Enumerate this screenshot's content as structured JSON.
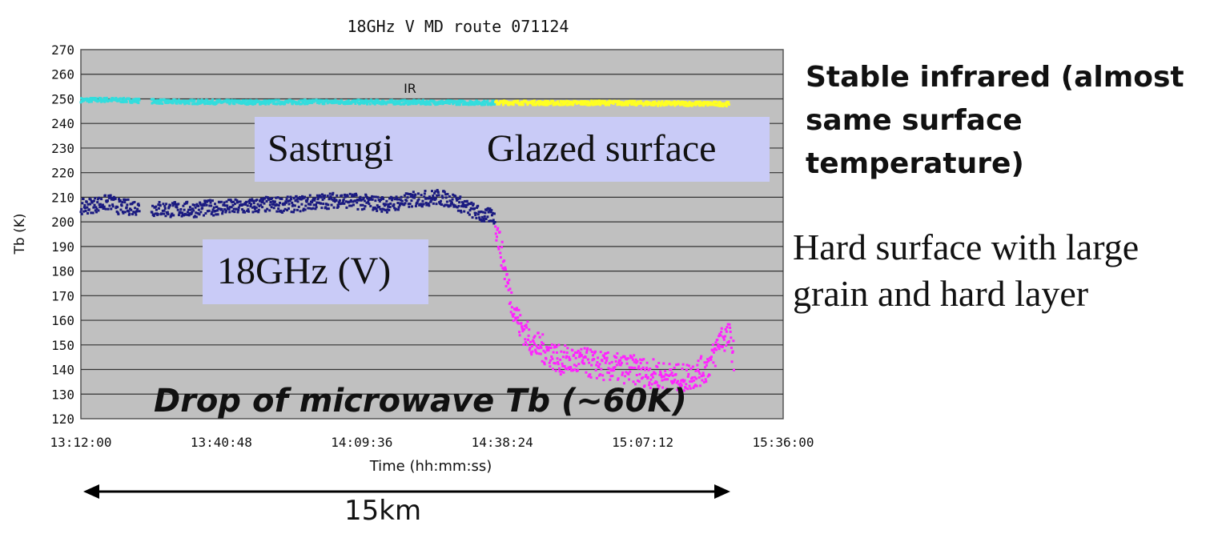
{
  "chart_data": {
    "type": "scatter",
    "title": "18GHz V MD route  071124",
    "xlabel": "Time (hh:mm:ss)",
    "ylabel": "Tb (K)",
    "ylim": [
      120,
      270
    ],
    "yticks": [
      120,
      130,
      140,
      150,
      160,
      170,
      180,
      190,
      200,
      210,
      220,
      230,
      240,
      250,
      260,
      270
    ],
    "xlim": [
      "13:12:00",
      "15:36:00"
    ],
    "xticks": [
      "13:12:00",
      "13:40:48",
      "14:09:36",
      "14:38:24",
      "15:07:12",
      "15:36:00"
    ],
    "grid": true,
    "background": "#c0c0c0",
    "series": [
      {
        "name": "IR",
        "color_sastrugi": "#33dddd",
        "color_glazed": "#ffff22",
        "points": [
          [
            "13:12:00",
            249.5
          ],
          [
            "13:18:00",
            249.6
          ],
          [
            "13:23:00",
            249.3
          ],
          [
            "13:30:00",
            248.8
          ],
          [
            "13:40:00",
            248.7
          ],
          [
            "13:50:00",
            248.6
          ],
          [
            "14:00:00",
            248.8
          ],
          [
            "14:10:00",
            248.7
          ],
          [
            "14:20:00",
            248.6
          ],
          [
            "14:30:00",
            248.5
          ],
          [
            "14:36:00",
            248.4
          ],
          [
            "14:40:00",
            248.5
          ],
          [
            "14:50:00",
            248.3
          ],
          [
            "15:00:00",
            248.4
          ],
          [
            "15:10:00",
            248.1
          ],
          [
            "15:20:00",
            248.0
          ],
          [
            "15:25:00",
            247.9
          ]
        ]
      },
      {
        "name": "18GHz (V)",
        "color_sastrugi": "#1a1a80",
        "color_glazed": "#ff22ff",
        "points": [
          [
            "13:12:00",
            206
          ],
          [
            "13:15:00",
            207
          ],
          [
            "13:18:00",
            208
          ],
          [
            "13:20:00",
            206
          ],
          [
            "13:23:00",
            206
          ],
          [
            "13:30:00",
            205
          ],
          [
            "13:35:00",
            205
          ],
          [
            "13:40:00",
            206
          ],
          [
            "13:45:00",
            206
          ],
          [
            "13:50:00",
            207
          ],
          [
            "13:55:00",
            207
          ],
          [
            "14:00:00",
            208
          ],
          [
            "14:05:00",
            209
          ],
          [
            "14:10:00",
            208
          ],
          [
            "14:15:00",
            207
          ],
          [
            "14:20:00",
            209
          ],
          [
            "14:25:00",
            210
          ],
          [
            "14:28:00",
            209
          ],
          [
            "14:32:00",
            205
          ],
          [
            "14:35:00",
            202
          ],
          [
            "14:36:30",
            203
          ],
          [
            "14:37:00",
            200
          ],
          [
            "14:38:00",
            190
          ],
          [
            "14:39:00",
            180
          ],
          [
            "14:40:00",
            170
          ],
          [
            "14:42:00",
            158
          ],
          [
            "14:45:00",
            150
          ],
          [
            "14:48:00",
            147
          ],
          [
            "14:50:00",
            144
          ],
          [
            "14:55:00",
            143
          ],
          [
            "15:00:00",
            141
          ],
          [
            "15:05:00",
            140
          ],
          [
            "15:10:00",
            138
          ],
          [
            "15:15:00",
            136
          ],
          [
            "15:20:00",
            140
          ],
          [
            "15:22:00",
            146
          ],
          [
            "15:23:00",
            153
          ],
          [
            "15:25:00",
            153
          ],
          [
            "15:26:00",
            145
          ]
        ]
      }
    ],
    "annotations": {
      "ir": "IR",
      "sastrugi": "Sastrugi",
      "glazed": "Glazed surface",
      "freq": "18GHz (V)",
      "drop": "Drop of microwave Tb  (~60K)",
      "infrared_note": "Stable infrared (almost\nsame surface\ntemperature)",
      "hard_note": "Hard surface with large\ngrain and hard layer",
      "distance": "15km"
    }
  }
}
